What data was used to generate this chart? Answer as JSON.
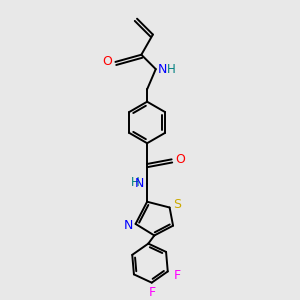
{
  "background_color": "#e8e8e8",
  "atom_colors": {
    "O": "#ff0000",
    "N": "#0000ff",
    "S": "#ccaa00",
    "F": "#ff00ff",
    "H": "#008080",
    "C": "#000000"
  },
  "figsize": [
    3.0,
    3.0
  ],
  "dpi": 100
}
